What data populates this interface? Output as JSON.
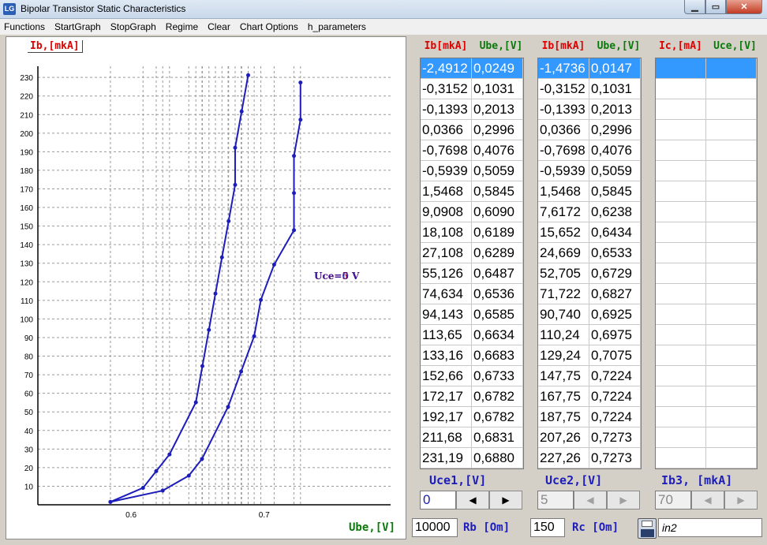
{
  "window": {
    "title": "Bipolar Transistor Static Characteristics",
    "icon_text": "LG"
  },
  "menu": [
    "Functions",
    "StartGraph",
    "StopGraph",
    "Regime",
    "Clear",
    "Chart Options",
    "h_parameters"
  ],
  "chart": {
    "ylabel": "Ib,[mkA]",
    "xlabel": "Ube,[V]",
    "annotation_a": "Uce=0 V",
    "annotation_b": "Uce=5 V",
    "colors": {
      "series": "#1d1dbb",
      "ylabel": "#dd0000",
      "xlabel": "#0a7a0a"
    }
  },
  "chart_data": {
    "type": "line",
    "xlabel": "Ube,[V]",
    "ylabel": "Ib,[mkA]",
    "xlim": [
      0.53,
      0.795
    ],
    "ylim": [
      0,
      236
    ],
    "x_ticks": [
      0.6,
      0.7
    ],
    "y_ticks": [
      10,
      20,
      30,
      40,
      50,
      60,
      70,
      80,
      90,
      100,
      110,
      120,
      130,
      140,
      150,
      160,
      170,
      180,
      190,
      200,
      210,
      220,
      230
    ],
    "grid": true,
    "series": [
      {
        "name": "Uce=0 V",
        "x": [
          0.5845,
          0.609,
          0.6189,
          0.6289,
          0.6487,
          0.6536,
          0.6585,
          0.6634,
          0.6683,
          0.6733,
          0.6782,
          0.6782,
          0.6831,
          0.688
        ],
        "y": [
          1.5468,
          9.0908,
          18.108,
          27.108,
          55.126,
          74.634,
          94.143,
          113.65,
          133.16,
          152.66,
          172.17,
          192.17,
          211.68,
          231.19
        ]
      },
      {
        "name": "Uce=5 V",
        "x": [
          0.5845,
          0.6238,
          0.6434,
          0.6533,
          0.6729,
          0.6827,
          0.6925,
          0.6975,
          0.7075,
          0.7224,
          0.7224,
          0.7224,
          0.7273,
          0.7273
        ],
        "y": [
          1.5468,
          7.6172,
          15.652,
          24.669,
          52.705,
          71.722,
          90.74,
          110.24,
          129.24,
          147.75,
          167.75,
          187.75,
          207.26,
          227.26
        ]
      }
    ]
  },
  "table1": {
    "headers": [
      "Ib[mkA]",
      "Ube,[V]"
    ],
    "rows": [
      [
        "-2,4912",
        "0,0249"
      ],
      [
        "-0,3152",
        "0,1031"
      ],
      [
        "-0,1393",
        "0,2013"
      ],
      [
        "0,0366",
        "0,2996"
      ],
      [
        "-0,7698",
        "0,4076"
      ],
      [
        "-0,5939",
        "0,5059"
      ],
      [
        "1,5468",
        "0,5845"
      ],
      [
        "9,0908",
        "0,6090"
      ],
      [
        "18,108",
        "0,6189"
      ],
      [
        "27,108",
        "0,6289"
      ],
      [
        "55,126",
        "0,6487"
      ],
      [
        "74,634",
        "0,6536"
      ],
      [
        "94,143",
        "0,6585"
      ],
      [
        "113,65",
        "0,6634"
      ],
      [
        "133,16",
        "0,6683"
      ],
      [
        "152,66",
        "0,6733"
      ],
      [
        "172,17",
        "0,6782"
      ],
      [
        "192,17",
        "0,6782"
      ],
      [
        "211,68",
        "0,6831"
      ],
      [
        "231,19",
        "0,6880"
      ]
    ]
  },
  "table2": {
    "headers": [
      "Ib[mkA]",
      "Ube,[V]"
    ],
    "rows": [
      [
        "-1,4736",
        "0,0147"
      ],
      [
        "-0,3152",
        "0,1031"
      ],
      [
        "-0,1393",
        "0,2013"
      ],
      [
        "0,0366",
        "0,2996"
      ],
      [
        "-0,7698",
        "0,4076"
      ],
      [
        "-0,5939",
        "0,5059"
      ],
      [
        "1,5468",
        "0,5845"
      ],
      [
        "7,6172",
        "0,6238"
      ],
      [
        "15,652",
        "0,6434"
      ],
      [
        "24,669",
        "0,6533"
      ],
      [
        "52,705",
        "0,6729"
      ],
      [
        "71,722",
        "0,6827"
      ],
      [
        "90,740",
        "0,6925"
      ],
      [
        "110,24",
        "0,6975"
      ],
      [
        "129,24",
        "0,7075"
      ],
      [
        "147,75",
        "0,7224"
      ],
      [
        "167,75",
        "0,7224"
      ],
      [
        "187,75",
        "0,7224"
      ],
      [
        "207,26",
        "0,7273"
      ],
      [
        "227,26",
        "0,7273"
      ]
    ]
  },
  "table3": {
    "headers": [
      "Ic,[mA]",
      "Uce,[V]"
    ],
    "row_count": 20
  },
  "params": {
    "uce1_label": "Uce1,[V]",
    "uce1_value": "0",
    "uce2_label": "Uce2,[V]",
    "uce2_value": "5",
    "ib3_label": "Ib3, [mkA]",
    "ib3_value": "70",
    "left_arrow": "◀",
    "right_arrow": "▶"
  },
  "bottom": {
    "rb_value": "10000",
    "rb_label": "Rb [Om]",
    "rc_value": "150",
    "rc_label": "Rc [Om]",
    "file_name": "in2"
  }
}
